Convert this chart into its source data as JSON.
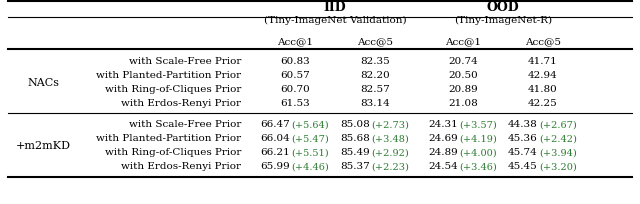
{
  "title_iid": "IID",
  "subtitle_iid": "(Tiny-ImageNet Validation)",
  "title_ood": "OOD",
  "subtitle_ood": "(Tiny-ImageNet-R)",
  "col_headers": [
    "Acc@1",
    "Acc@5",
    "Acc@1",
    "Acc@5"
  ],
  "row_group1_label": "NACs",
  "row_group2_label": "+m2mKD",
  "rows": [
    {
      "group": "NACs",
      "method": "with Scale-Free Prior",
      "vals": [
        "60.83",
        "82.35",
        "20.74",
        "41.71"
      ],
      "deltas": [
        null,
        null,
        null,
        null
      ]
    },
    {
      "group": "NACs",
      "method": "with Planted-Partition Prior",
      "vals": [
        "60.57",
        "82.20",
        "20.50",
        "42.94"
      ],
      "deltas": [
        null,
        null,
        null,
        null
      ]
    },
    {
      "group": "NACs",
      "method": "with Ring-of-Cliques Prior",
      "vals": [
        "60.70",
        "82.57",
        "20.89",
        "41.80"
      ],
      "deltas": [
        null,
        null,
        null,
        null
      ]
    },
    {
      "group": "NACs",
      "method": "with Erdos-Renyi Prior",
      "vals": [
        "61.53",
        "83.14",
        "21.08",
        "42.25"
      ],
      "deltas": [
        null,
        null,
        null,
        null
      ]
    },
    {
      "group": "+m2mKD",
      "method": "with Scale-Free Prior",
      "vals": [
        "66.47",
        "85.08",
        "24.31",
        "44.38"
      ],
      "deltas": [
        "+5.64",
        "+2.73",
        "+3.57",
        "+2.67"
      ]
    },
    {
      "group": "+m2mKD",
      "method": "with Planted-Partition Prior",
      "vals": [
        "66.04",
        "85.68",
        "24.69",
        "45.36"
      ],
      "deltas": [
        "+5.47",
        "+3.48",
        "+4.19",
        "+2.42"
      ]
    },
    {
      "group": "+m2mKD",
      "method": "with Ring-of-Cliques Prior",
      "vals": [
        "66.21",
        "85.49",
        "24.89",
        "45.74"
      ],
      "deltas": [
        "+5.51",
        "+2.92",
        "+4.00",
        "+3.94"
      ]
    },
    {
      "group": "+m2mKD",
      "method": "with Erdos-Renyi Prior",
      "vals": [
        "65.99",
        "85.37",
        "24.54",
        "45.45"
      ],
      "deltas": [
        "+4.46",
        "+2.23",
        "+3.46",
        "+3.20"
      ]
    }
  ],
  "delta_color": "#2e7d32",
  "bg_color": "#ffffff",
  "text_color": "#000000",
  "figwidth": 6.4,
  "figheight": 2.05,
  "dpi": 100,
  "fontsize_title": 9,
  "fontsize_sub": 7.5,
  "fontsize_header": 7.5,
  "fontsize_data": 7.5,
  "fontsize_delta": 7.0,
  "fontsize_group": 8.0
}
